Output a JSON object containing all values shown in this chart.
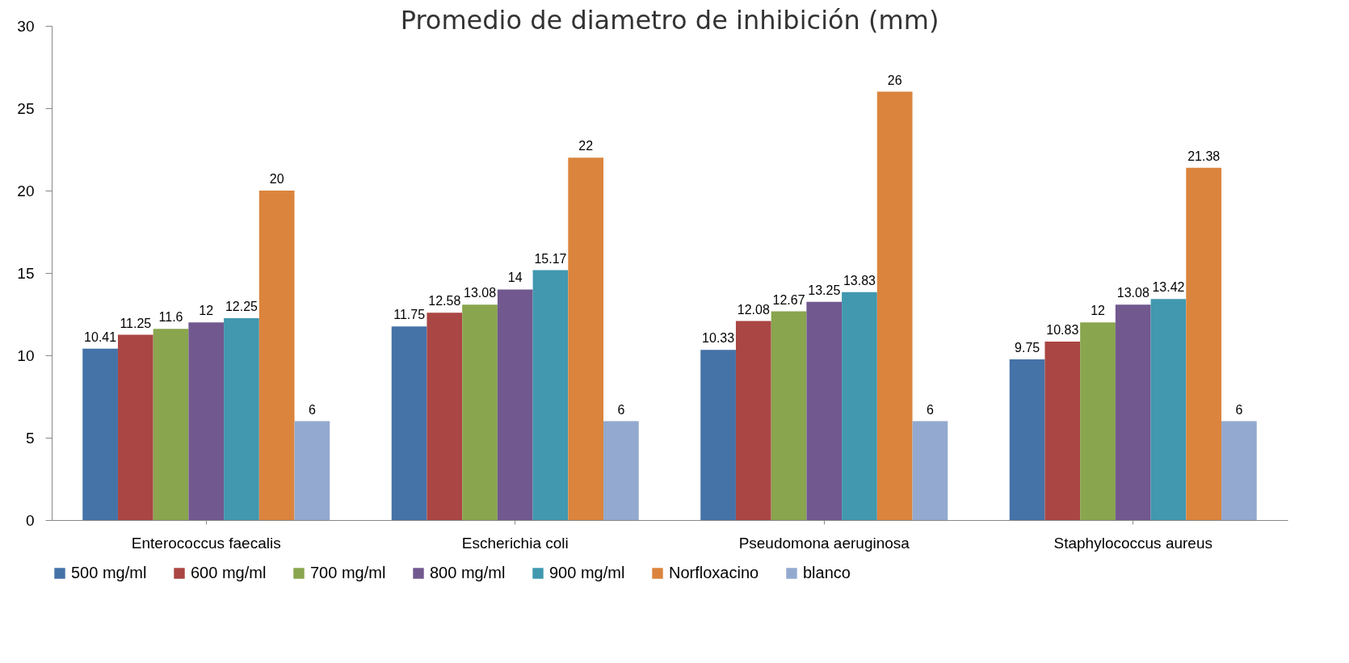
{
  "chart_data": {
    "type": "bar",
    "title": "Promedio de diametro de inhibición (mm)",
    "categories": [
      "Enterococcus faecalis",
      "Escherichia coli",
      "Pseudomona aeruginosa",
      "Staphylococcus aureus"
    ],
    "series": [
      {
        "name": "500 mg/ml",
        "color": "#4572a7",
        "values": [
          10.41,
          11.75,
          10.33,
          9.75
        ]
      },
      {
        "name": "600 mg/ml",
        "color": "#aa4643",
        "values": [
          11.25,
          12.58,
          12.08,
          10.83
        ]
      },
      {
        "name": "700 mg/ml",
        "color": "#89a54e",
        "values": [
          11.6,
          13.08,
          12.67,
          12
        ]
      },
      {
        "name": "800 mg/ml",
        "color": "#71588f",
        "values": [
          12,
          14,
          13.25,
          13.08
        ]
      },
      {
        "name": "900 mg/ml",
        "color": "#4198af",
        "values": [
          12.25,
          15.17,
          13.83,
          13.42
        ]
      },
      {
        "name": "Norfloxacino",
        "color": "#db843d",
        "values": [
          20,
          22,
          26,
          21.38
        ]
      },
      {
        "name": "blanco",
        "color": "#93a9cf",
        "values": [
          6,
          6,
          6,
          6
        ]
      }
    ],
    "ylim": [
      0,
      30
    ],
    "yticks": [
      0,
      5,
      10,
      15,
      20,
      25,
      30
    ],
    "grid": false,
    "legend": "bottom",
    "data_labels": true
  }
}
